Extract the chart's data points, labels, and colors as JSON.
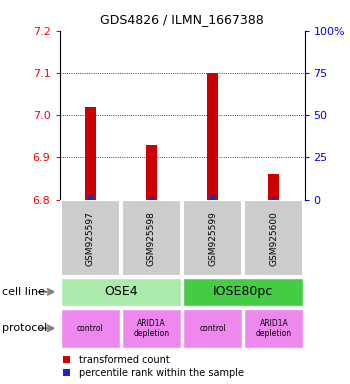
{
  "title": "GDS4826 / ILMN_1667388",
  "samples": [
    "GSM925597",
    "GSM925598",
    "GSM925599",
    "GSM925600"
  ],
  "transformed_counts": [
    7.02,
    6.93,
    7.1,
    6.86
  ],
  "percentile_ranks": [
    3,
    1,
    3,
    1
  ],
  "y_min": 6.8,
  "y_max": 7.2,
  "y_ticks": [
    6.8,
    6.9,
    7.0,
    7.1,
    7.2
  ],
  "y2_labels": [
    "0",
    "25",
    "50",
    "75",
    "100%"
  ],
  "bar_color": "#cc0000",
  "percentile_color": "#2222cc",
  "sample_box_color": "#cccccc",
  "cell_line_1_color": "#aaeaaa",
  "cell_line_2_color": "#44cc44",
  "protocol_color": "#ee88ee",
  "cell_lines": [
    "OSE4",
    "IOSE80pc"
  ],
  "cell_line_spans": [
    [
      0,
      1
    ],
    [
      2,
      3
    ]
  ],
  "protocols": [
    "control",
    "ARID1A\ndepletion",
    "control",
    "ARID1A\ndepletion"
  ],
  "label_cell_line": "cell line",
  "label_protocol": "protocol",
  "legend_red": "transformed count",
  "legend_blue": "percentile rank within the sample",
  "bar_width": 0.18,
  "pct_bar_width": 0.08
}
